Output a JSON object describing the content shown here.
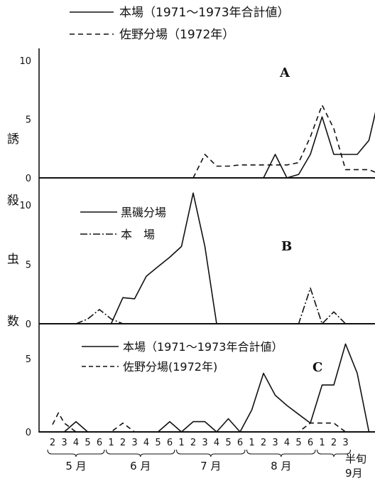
{
  "figure": {
    "ylabel_chars": [
      "誘",
      "殺",
      "虫",
      "数"
    ]
  },
  "chart_data": [
    {
      "type": "line",
      "panel_label": "A",
      "title": "",
      "xlabel": "",
      "ylabel": "誘殺虫数",
      "ylim": [
        0,
        12
      ],
      "yticks": [
        0,
        5,
        10
      ],
      "grid": false,
      "legend": "top-outside",
      "series": [
        {
          "name": "本場（1971〜1973年合計値）",
          "style": "solid",
          "points": [
            {
              "x": 18,
              "y": 0
            },
            {
              "x": 19,
              "y": 2
            },
            {
              "x": 20,
              "y": 0
            },
            {
              "x": 21,
              "y": 0.3
            },
            {
              "x": 22,
              "y": 2
            },
            {
              "x": 23,
              "y": 5.2
            },
            {
              "x": 24,
              "y": 2
            },
            {
              "x": 25,
              "y": 2
            },
            {
              "x": 26,
              "y": 2
            },
            {
              "x": 27,
              "y": 3.2
            },
            {
              "x": 28,
              "y": 7.5
            },
            {
              "x": 29,
              "y": 2.7
            },
            {
              "x": 30,
              "y": 0.7
            },
            {
              "x": 31,
              "y": 0
            }
          ]
        },
        {
          "name": "佐野分場（1972年）",
          "style": "dashed",
          "points": [
            {
              "x": 12,
              "y": 0
            },
            {
              "x": 13,
              "y": 2
            },
            {
              "x": 14,
              "y": 1
            },
            {
              "x": 15,
              "y": 1
            },
            {
              "x": 16,
              "y": 1.1
            },
            {
              "x": 17,
              "y": 1.1
            },
            {
              "x": 18,
              "y": 1.1
            },
            {
              "x": 19,
              "y": 1.1
            },
            {
              "x": 20,
              "y": 1.1
            },
            {
              "x": 21,
              "y": 1.3
            },
            {
              "x": 22,
              "y": 3.5
            },
            {
              "x": 23,
              "y": 6.2
            },
            {
              "x": 24,
              "y": 4.2
            },
            {
              "x": 25,
              "y": 0.7
            },
            {
              "x": 26,
              "y": 0.7
            },
            {
              "x": 27,
              "y": 0.7
            },
            {
              "x": 28,
              "y": 0.3
            },
            {
              "x": 29,
              "y": 0
            }
          ]
        }
      ]
    },
    {
      "type": "line",
      "panel_label": "B",
      "title": "",
      "xlabel": "",
      "ylabel": "誘殺虫数",
      "ylim": [
        0,
        12
      ],
      "yticks": [
        0,
        5,
        10
      ],
      "grid": false,
      "legend": "top-left",
      "series": [
        {
          "name": "黒磯分場",
          "style": "solid",
          "points": [
            {
              "x": 5,
              "y": 0
            },
            {
              "x": 6,
              "y": 2.2
            },
            {
              "x": 7,
              "y": 2.1
            },
            {
              "x": 8,
              "y": 4
            },
            {
              "x": 9,
              "y": 4.8
            },
            {
              "x": 10,
              "y": 5.6
            },
            {
              "x": 11,
              "y": 6.5
            },
            {
              "x": 12,
              "y": 11
            },
            {
              "x": 13,
              "y": 6.5
            },
            {
              "x": 14,
              "y": 0
            }
          ]
        },
        {
          "name": "本　場",
          "style": "dashdot",
          "points": [
            {
              "x": 2,
              "y": 0
            },
            {
              "x": 3,
              "y": 0.4
            },
            {
              "x": 4,
              "y": 1.2
            },
            {
              "x": 5,
              "y": 0.4
            },
            {
              "x": 6,
              "y": 0
            },
            {
              "x": 21,
              "y": 0
            },
            {
              "x": 22,
              "y": 3
            },
            {
              "x": 23,
              "y": 0
            },
            {
              "x": 24,
              "y": 1
            },
            {
              "x": 25,
              "y": 0
            }
          ]
        }
      ]
    },
    {
      "type": "line",
      "panel_label": "C",
      "title": "",
      "xlabel": "半旬",
      "ylabel": "誘殺虫数",
      "ylim": [
        0,
        7
      ],
      "yticks": [
        0,
        5
      ],
      "grid": false,
      "legend": "top-left",
      "x_ticks": [
        "2",
        "3",
        "4",
        "5",
        "6",
        "1",
        "2",
        "3",
        "4",
        "5",
        "6",
        "1",
        "2",
        "3",
        "4",
        "5",
        "6",
        "1",
        "2",
        "3",
        "4",
        "5",
        "6",
        "1",
        "2",
        "3"
      ],
      "months": [
        "5 月",
        "6 月",
        "7 月",
        "8 月",
        "9月"
      ],
      "series": [
        {
          "name": "本場（1971〜1973年合計値）",
          "style": "solid",
          "points": [
            {
              "x": 1,
              "y": 0
            },
            {
              "x": 2,
              "y": 0.7
            },
            {
              "x": 3,
              "y": 0
            },
            {
              "x": 9,
              "y": 0
            },
            {
              "x": 10,
              "y": 0.7
            },
            {
              "x": 11,
              "y": 0
            },
            {
              "x": 12,
              "y": 0.7
            },
            {
              "x": 13,
              "y": 0.7
            },
            {
              "x": 14,
              "y": 0
            },
            {
              "x": 15,
              "y": 0.9
            },
            {
              "x": 16,
              "y": 0
            },
            {
              "x": 17,
              "y": 1.5
            },
            {
              "x": 18,
              "y": 4
            },
            {
              "x": 19,
              "y": 2.5
            },
            {
              "x": 20,
              "y": 1.8
            },
            {
              "x": 21,
              "y": 1.2
            },
            {
              "x": 22,
              "y": 0.6
            },
            {
              "x": 23,
              "y": 3.2
            },
            {
              "x": 24,
              "y": 3.2
            },
            {
              "x": 25,
              "y": 6
            },
            {
              "x": 26,
              "y": 4
            },
            {
              "x": 27,
              "y": 0
            }
          ]
        },
        {
          "name": "佐野分場(1972年)",
          "style": "dashed",
          "points": [
            {
              "x": 0,
              "y": 0.5
            },
            {
              "x": 0.5,
              "y": 1.3
            },
            {
              "x": 1,
              "y": 0.6
            },
            {
              "x": 2,
              "y": 0
            },
            {
              "x": 5,
              "y": 0
            },
            {
              "x": 6,
              "y": 0.6
            },
            {
              "x": 7,
              "y": 0
            },
            {
              "x": 21,
              "y": 0
            },
            {
              "x": 22,
              "y": 0.6
            },
            {
              "x": 23,
              "y": 0.6
            },
            {
              "x": 24,
              "y": 0.6
            },
            {
              "x": 25,
              "y": 0
            }
          ]
        }
      ]
    }
  ]
}
